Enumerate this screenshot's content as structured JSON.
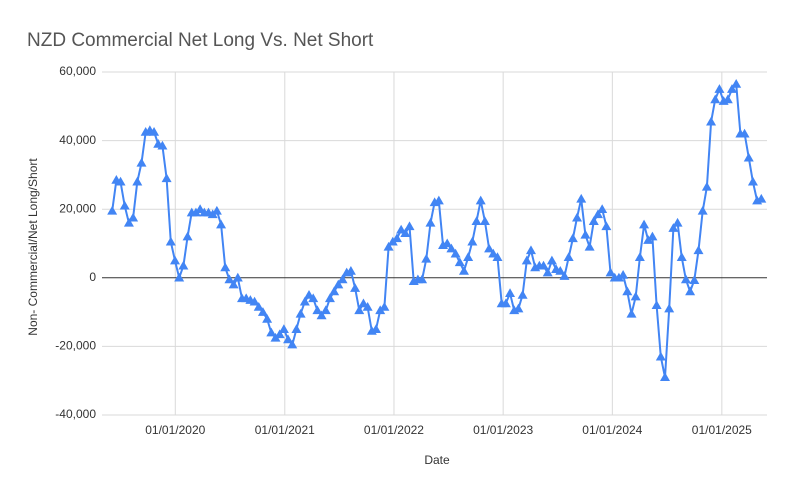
{
  "chart_data": {
    "type": "line",
    "title": "NZD Commercial Net Long Vs. Net Short",
    "x_label": "Date",
    "y_label": "Non- Commercial/Net Long/Short",
    "color": "#4285f4",
    "marker": "triangle",
    "grid": true,
    "xlim": [
      "01/05/2019",
      "01/06/2025"
    ],
    "xticks": [
      "01/01/2020",
      "01/01/2021",
      "01/01/2022",
      "01/01/2023",
      "01/01/2024",
      "01/01/2025"
    ],
    "ylim": [
      -40000,
      60000
    ],
    "yticks": [
      {
        "value": -40000,
        "label": "-40,000"
      },
      {
        "value": -20000,
        "label": "-20,000"
      },
      0,
      {
        "value": 20000,
        "label": "20,000"
      },
      {
        "value": 40000,
        "label": "40,000"
      },
      {
        "value": 60000,
        "label": "60,000"
      }
    ],
    "x": [
      "04/06/2019",
      "18/06/2019",
      "02/07/2019",
      "16/07/2019",
      "30/07/2019",
      "13/08/2019",
      "27/08/2019",
      "10/09/2019",
      "24/09/2019",
      "08/10/2019",
      "22/10/2019",
      "05/11/2019",
      "19/11/2019",
      "03/12/2019",
      "17/12/2019",
      "31/12/2019",
      "14/01/2020",
      "28/01/2020",
      "11/02/2020",
      "25/02/2020",
      "10/03/2020",
      "24/03/2020",
      "07/04/2020",
      "21/04/2020",
      "05/05/2020",
      "19/05/2020",
      "02/06/2020",
      "16/06/2020",
      "30/06/2020",
      "14/07/2020",
      "28/07/2020",
      "11/08/2020",
      "25/08/2020",
      "08/09/2020",
      "22/09/2020",
      "06/10/2020",
      "20/10/2020",
      "03/11/2020",
      "17/11/2020",
      "01/12/2020",
      "15/12/2020",
      "29/12/2020",
      "12/01/2021",
      "26/01/2021",
      "09/02/2021",
      "23/02/2021",
      "09/03/2021",
      "23/03/2021",
      "06/04/2021",
      "20/04/2021",
      "04/05/2021",
      "18/05/2021",
      "01/06/2021",
      "15/06/2021",
      "29/06/2021",
      "13/07/2021",
      "27/07/2021",
      "10/08/2021",
      "24/08/2021",
      "07/09/2021",
      "21/09/2021",
      "05/10/2021",
      "19/10/2021",
      "02/11/2021",
      "16/11/2021",
      "30/11/2021",
      "14/12/2021",
      "28/12/2021",
      "11/01/2022",
      "25/01/2022",
      "08/02/2022",
      "22/02/2022",
      "08/03/2022",
      "22/03/2022",
      "05/04/2022",
      "19/04/2022",
      "03/05/2022",
      "17/05/2022",
      "31/05/2022",
      "14/06/2022",
      "28/06/2022",
      "12/07/2022",
      "26/07/2022",
      "09/08/2022",
      "23/08/2022",
      "06/09/2022",
      "20/09/2022",
      "04/10/2022",
      "18/10/2022",
      "01/11/2022",
      "15/11/2022",
      "29/11/2022",
      "13/12/2022",
      "27/12/2022",
      "10/01/2023",
      "24/01/2023",
      "07/02/2023",
      "21/02/2023",
      "07/03/2023",
      "21/03/2023",
      "04/04/2023",
      "18/04/2023",
      "02/05/2023",
      "16/05/2023",
      "30/05/2023",
      "13/06/2023",
      "27/06/2023",
      "11/07/2023",
      "25/07/2023",
      "08/08/2023",
      "22/08/2023",
      "05/09/2023",
      "19/09/2023",
      "03/10/2023",
      "17/10/2023",
      "31/10/2023",
      "14/11/2023",
      "28/11/2023",
      "12/12/2023",
      "26/12/2023",
      "09/01/2024",
      "23/01/2024",
      "06/02/2024",
      "20/02/2024",
      "05/03/2024",
      "19/03/2024",
      "02/04/2024",
      "16/04/2024",
      "30/04/2024",
      "14/05/2024",
      "28/05/2024",
      "11/06/2024",
      "25/06/2024",
      "09/07/2024",
      "23/07/2024",
      "06/08/2024",
      "20/08/2024",
      "03/09/2024",
      "17/09/2024",
      "01/10/2024",
      "15/10/2024",
      "29/10/2024",
      "12/11/2024",
      "26/11/2024",
      "10/12/2024",
      "24/12/2024",
      "07/01/2025",
      "21/01/2025",
      "04/02/2025",
      "18/02/2025",
      "04/03/2025",
      "18/03/2025",
      "01/04/2025",
      "15/04/2025",
      "29/04/2025",
      "13/05/2025"
    ],
    "values": [
      19500,
      28500,
      28000,
      21000,
      16000,
      17500,
      28000,
      33500,
      42500,
      43000,
      42500,
      39000,
      38500,
      29000,
      10500,
      5000,
      0,
      3500,
      12000,
      19000,
      19000,
      20000,
      19000,
      19000,
      18500,
      19500,
      15500,
      3000,
      -500,
      -2000,
      0,
      -6000,
      -6000,
      -6500,
      -7000,
      -8500,
      -10000,
      -12000,
      -16000,
      -17500,
      -16500,
      -15000,
      -18000,
      -19500,
      -15000,
      -10500,
      -7000,
      -5000,
      -6000,
      -9500,
      -11000,
      -9500,
      -6000,
      -4000,
      -2000,
      -500,
      1500,
      2000,
      -3000,
      -9500,
      -7500,
      -8500,
      -15500,
      -15000,
      -9500,
      -8500,
      9000,
      10500,
      11500,
      14000,
      13000,
      15000,
      -1000,
      -500,
      -500,
      5500,
      16000,
      22000,
      22500,
      9500,
      10000,
      8500,
      7000,
      4500,
      2000,
      6000,
      10500,
      16500,
      22500,
      16500,
      8500,
      7000,
      6000,
      -7500,
      -7500,
      -4500,
      -9500,
      -9000,
      -5000,
      5000,
      8000,
      3000,
      3500,
      3500,
      1500,
      5000,
      2500,
      2000,
      500,
      6000,
      11500,
      17500,
      23000,
      12500,
      9000,
      16500,
      18500,
      20000,
      15000,
      1500,
      0,
      0,
      800,
      -4000,
      -10500,
      -5500,
      6000,
      15500,
      11000,
      12000,
      -8000,
      -23000,
      -29000,
      -9000,
      14500,
      16000,
      6000,
      -500,
      -4000,
      -700,
      8000,
      19500,
      26500,
      45500,
      52000,
      55000,
      51500,
      52000,
      55000,
      56500,
      42000,
      42000,
      35000,
      28000,
      22500,
      23000
    ]
  }
}
